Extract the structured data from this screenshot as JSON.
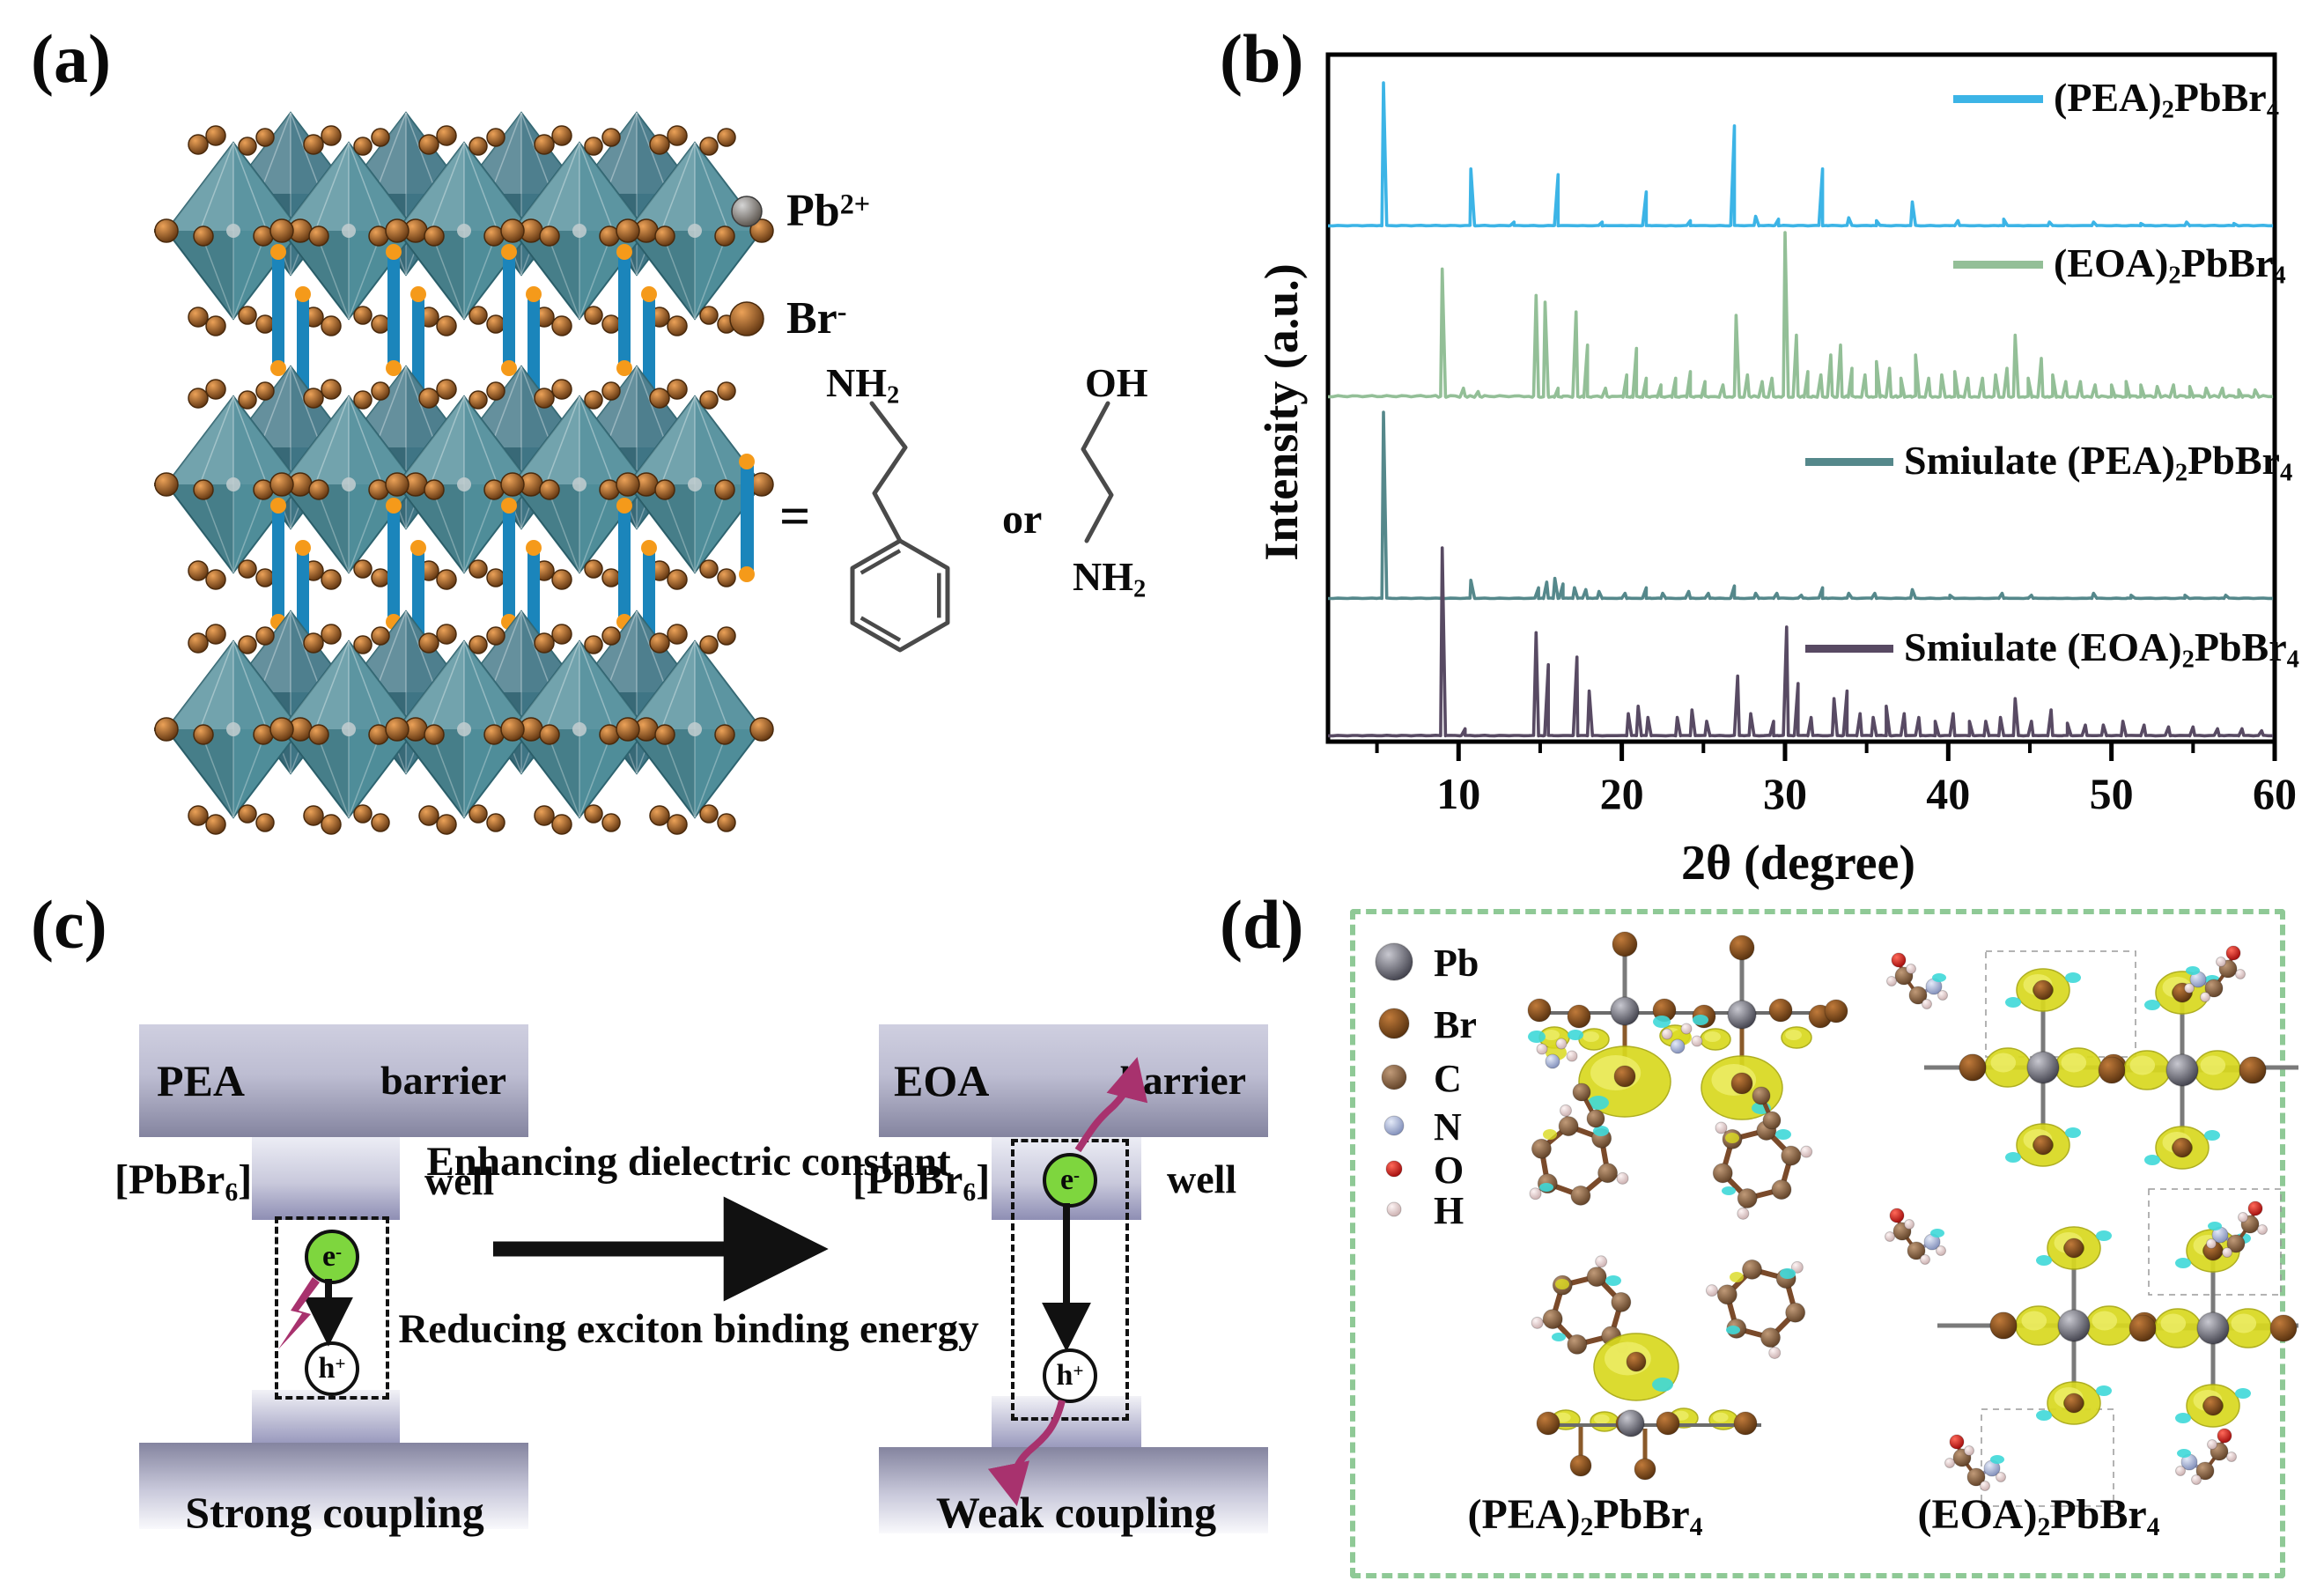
{
  "colors": {
    "pea_trace": "#3cb4e6",
    "eoa_trace": "#93bf97",
    "sim_pea_trace": "#55888b",
    "sim_eoa_trace": "#584a63",
    "electron_fill": "#7ed63e",
    "magenta": "#a8326e",
    "panel_d_border": "#8fc996",
    "iso_yellow": "#d9d91f",
    "iso_cyan": "#3ed8d8",
    "octahedron": "#4f8d99",
    "octahedron_back": "#3f7585",
    "rod_blue": "#1b85bb",
    "rod_cap_orange": "#f59a1a",
    "atom_pb": "#5b5b66",
    "atom_br": "#7c4a22",
    "atom_c": "#8a6248",
    "atom_n": "#aab6d8",
    "atom_o": "#e21212",
    "atom_h": "#eedcdc"
  },
  "panel_a": {
    "label": "(a)",
    "legend": {
      "pb": {
        "base": "Pb",
        "sup": "2+"
      },
      "br": {
        "base": "Br",
        "sup": "-"
      }
    },
    "equals": "=",
    "or": "or",
    "pea_amine": {
      "base": "NH",
      "sub": "2"
    },
    "eoa_oh": "OH",
    "eoa_amine": {
      "base": "NH",
      "sub": "2"
    }
  },
  "panel_b": {
    "label": "(b)"
  },
  "chart_data": {
    "type": "line",
    "title": "",
    "xlabel": "2θ (degree)",
    "ylabel": "Intensity (a.u.)",
    "xlim": [
      2,
      60
    ],
    "x_ticks": [
      10,
      20,
      30,
      40,
      50,
      60
    ],
    "x_minor_ticks": [
      5,
      15,
      25,
      35,
      45,
      55
    ],
    "grid": false,
    "legend_position": "inside right, stacked per trace",
    "note": "Stacked XRD patterns; peaks given as [two-theta degree, relative intensity 0-1 within each trace]",
    "series": [
      {
        "name": "(PEA)2PbBr4",
        "label": {
          "t1": "(PEA)",
          "s1": "2",
          "t2": "PbBr",
          "s2": "4"
        },
        "color": "#3cb4e6",
        "peaks": [
          [
            5.4,
            1.0
          ],
          [
            10.75,
            0.4
          ],
          [
            13.4,
            0.03
          ],
          [
            16.1,
            0.36
          ],
          [
            18.8,
            0.03
          ],
          [
            21.5,
            0.24
          ],
          [
            24.2,
            0.04
          ],
          [
            26.9,
            0.7
          ],
          [
            28.2,
            0.07
          ],
          [
            29.6,
            0.05
          ],
          [
            32.3,
            0.4
          ],
          [
            33.9,
            0.06
          ],
          [
            35.6,
            0.04
          ],
          [
            37.8,
            0.17
          ],
          [
            40.6,
            0.04
          ],
          [
            43.4,
            0.05
          ],
          [
            46.2,
            0.03
          ],
          [
            48.9,
            0.03
          ],
          [
            51.8,
            0.02
          ],
          [
            54.6,
            0.03
          ],
          [
            57.5,
            0.02
          ]
        ]
      },
      {
        "name": "(EOA)2PbBr4",
        "label": {
          "t1": "(EOA)",
          "s1": "2",
          "t2": "PbBr",
          "s2": "4"
        },
        "color": "#93bf97",
        "peaks": [
          [
            9.0,
            0.78
          ],
          [
            10.3,
            0.06
          ],
          [
            11.2,
            0.04
          ],
          [
            14.75,
            0.62
          ],
          [
            15.3,
            0.58
          ],
          [
            16.1,
            0.06
          ],
          [
            17.2,
            0.52
          ],
          [
            17.9,
            0.32
          ],
          [
            19.0,
            0.06
          ],
          [
            20.3,
            0.14
          ],
          [
            20.9,
            0.3
          ],
          [
            21.5,
            0.12
          ],
          [
            22.4,
            0.08
          ],
          [
            23.3,
            0.12
          ],
          [
            24.2,
            0.16
          ],
          [
            25.1,
            0.1
          ],
          [
            26.2,
            0.08
          ],
          [
            27.0,
            0.5
          ],
          [
            27.7,
            0.14
          ],
          [
            28.6,
            0.1
          ],
          [
            29.2,
            0.12
          ],
          [
            30.0,
            1.0
          ],
          [
            30.7,
            0.38
          ],
          [
            31.4,
            0.16
          ],
          [
            32.2,
            0.14
          ],
          [
            32.8,
            0.26
          ],
          [
            33.4,
            0.32
          ],
          [
            34.1,
            0.18
          ],
          [
            34.9,
            0.14
          ],
          [
            35.6,
            0.22
          ],
          [
            36.4,
            0.18
          ],
          [
            37.1,
            0.12
          ],
          [
            38.0,
            0.26
          ],
          [
            38.8,
            0.12
          ],
          [
            39.6,
            0.14
          ],
          [
            40.4,
            0.16
          ],
          [
            41.2,
            0.12
          ],
          [
            42.1,
            0.12
          ],
          [
            42.9,
            0.14
          ],
          [
            43.6,
            0.18
          ],
          [
            44.1,
            0.38
          ],
          [
            44.9,
            0.12
          ],
          [
            45.7,
            0.24
          ],
          [
            46.4,
            0.14
          ],
          [
            47.2,
            0.1
          ],
          [
            48.1,
            0.1
          ],
          [
            49.0,
            0.08
          ],
          [
            50.0,
            0.08
          ],
          [
            50.9,
            0.1
          ],
          [
            51.8,
            0.08
          ],
          [
            52.8,
            0.07
          ],
          [
            53.8,
            0.08
          ],
          [
            54.8,
            0.07
          ],
          [
            55.8,
            0.06
          ],
          [
            56.8,
            0.06
          ],
          [
            57.8,
            0.05
          ],
          [
            58.8,
            0.05
          ]
        ]
      },
      {
        "name": "Smiulate (PEA)2PbBr4",
        "label": {
          "t1": "Smiulate (PEA)",
          "s1": "2",
          "t2": "PbBr",
          "s2": "4"
        },
        "color": "#55888b",
        "peaks": [
          [
            5.4,
            1.0
          ],
          [
            10.75,
            0.1
          ],
          [
            14.9,
            0.06
          ],
          [
            15.4,
            0.09
          ],
          [
            15.9,
            0.11
          ],
          [
            16.4,
            0.08
          ],
          [
            17.1,
            0.06
          ],
          [
            17.8,
            0.05
          ],
          [
            18.6,
            0.04
          ],
          [
            20.2,
            0.03
          ],
          [
            21.5,
            0.06
          ],
          [
            22.5,
            0.03
          ],
          [
            24.1,
            0.04
          ],
          [
            25.3,
            0.03
          ],
          [
            26.9,
            0.07
          ],
          [
            28.2,
            0.03
          ],
          [
            29.5,
            0.03
          ],
          [
            31.0,
            0.02
          ],
          [
            32.3,
            0.06
          ],
          [
            33.9,
            0.03
          ],
          [
            35.5,
            0.03
          ],
          [
            37.8,
            0.05
          ],
          [
            40.1,
            0.02
          ],
          [
            43.3,
            0.03
          ],
          [
            45.1,
            0.02
          ],
          [
            48.9,
            0.03
          ],
          [
            51.2,
            0.02
          ],
          [
            54.5,
            0.02
          ],
          [
            57.0,
            0.02
          ]
        ]
      },
      {
        "name": "Smiulate (EOA)2PbBr4",
        "label": {
          "t1": "Smiulate (EOA)",
          "s1": "2",
          "t2": "PbBr",
          "s2": "4"
        },
        "color": "#584a63",
        "peaks": [
          [
            9.0,
            1.0
          ],
          [
            10.4,
            0.04
          ],
          [
            14.75,
            0.55
          ],
          [
            15.5,
            0.38
          ],
          [
            17.25,
            0.42
          ],
          [
            18.0,
            0.24
          ],
          [
            20.4,
            0.12
          ],
          [
            21.0,
            0.16
          ],
          [
            21.6,
            0.1
          ],
          [
            23.4,
            0.1
          ],
          [
            24.3,
            0.14
          ],
          [
            25.2,
            0.08
          ],
          [
            27.1,
            0.32
          ],
          [
            27.9,
            0.12
          ],
          [
            29.3,
            0.08
          ],
          [
            30.1,
            0.58
          ],
          [
            30.8,
            0.28
          ],
          [
            31.6,
            0.1
          ],
          [
            33.0,
            0.2
          ],
          [
            33.8,
            0.24
          ],
          [
            34.6,
            0.12
          ],
          [
            35.4,
            0.1
          ],
          [
            36.2,
            0.16
          ],
          [
            37.3,
            0.12
          ],
          [
            38.2,
            0.1
          ],
          [
            39.2,
            0.08
          ],
          [
            40.3,
            0.12
          ],
          [
            41.3,
            0.08
          ],
          [
            42.3,
            0.08
          ],
          [
            43.2,
            0.1
          ],
          [
            44.1,
            0.2
          ],
          [
            45.1,
            0.08
          ],
          [
            46.3,
            0.14
          ],
          [
            47.3,
            0.07
          ],
          [
            48.4,
            0.06
          ],
          [
            49.5,
            0.06
          ],
          [
            50.7,
            0.08
          ],
          [
            52.0,
            0.06
          ],
          [
            53.5,
            0.05
          ],
          [
            55.0,
            0.05
          ],
          [
            56.5,
            0.04
          ],
          [
            58.0,
            0.04
          ],
          [
            59.2,
            0.03
          ]
        ]
      }
    ]
  },
  "panel_c": {
    "label": "(c)",
    "left": {
      "material": "PEA",
      "barrier": "barrier",
      "well_formula": {
        "t1": "[PbBr",
        "s1": "6",
        "t2": "]"
      },
      "well": "well",
      "caption": "Strong coupling"
    },
    "right": {
      "material": "EOA",
      "barrier": "barrier",
      "well_formula": {
        "t1": "[PbBr",
        "s1": "6",
        "t2": "]"
      },
      "well": "well",
      "caption": "Weak coupling"
    },
    "electron": {
      "base": "e",
      "sup": "-"
    },
    "hole": {
      "base": "h",
      "sup": "+"
    },
    "arrow_text_top": "Enhancing dielectric constant",
    "arrow_text_bottom": "Reducing exciton binding energy"
  },
  "panel_d": {
    "label": "(d)",
    "legend": [
      {
        "symbol": "Pb"
      },
      {
        "symbol": "Br"
      },
      {
        "symbol": "C"
      },
      {
        "symbol": "N"
      },
      {
        "symbol": "O"
      },
      {
        "symbol": "H"
      }
    ],
    "left_formula": {
      "t1": "(PEA)",
      "s1": "2",
      "t2": "PbBr",
      "s2": "4"
    },
    "right_formula": {
      "t1": "(EOA)",
      "s1": "2",
      "t2": "PbBr",
      "s2": "4"
    }
  }
}
